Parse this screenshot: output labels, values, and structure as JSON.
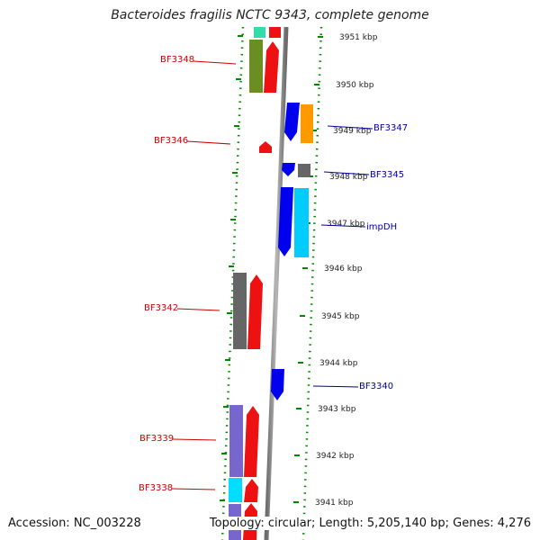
{
  "title": "Bacteroides fragilis NCTC 9343, complete genome",
  "accession_text": "Accession: NC_003228",
  "topology_text": "Topology: circular; Length: 5,205,140 bp; Genes: 4,276",
  "ticks": [
    {
      "label": "3951 kbp"
    },
    {
      "label": "3950 kbp"
    },
    {
      "label": "3949 kbp"
    },
    {
      "label": "3948 kbp"
    },
    {
      "label": "3947 kbp"
    },
    {
      "label": "3946 kbp"
    },
    {
      "label": "3945 kbp"
    },
    {
      "label": "3944 kbp"
    },
    {
      "label": "3943 kbp"
    },
    {
      "label": "3942 kbp"
    },
    {
      "label": "3941 kbp"
    }
  ],
  "left_labels": [
    {
      "text": "BF3348"
    },
    {
      "text": "BF3346"
    },
    {
      "text": "BF3342"
    },
    {
      "text": "BF3339"
    },
    {
      "text": "BF3338"
    }
  ],
  "right_labels": [
    {
      "text": "BF3347"
    },
    {
      "text": "BF3345"
    },
    {
      "text": "impDH"
    },
    {
      "text": "BF3340"
    }
  ],
  "colors": {
    "label_left": "#cc0000",
    "label_right": "#000099",
    "ring_ticks": "#008800",
    "backbone": "#888888"
  }
}
